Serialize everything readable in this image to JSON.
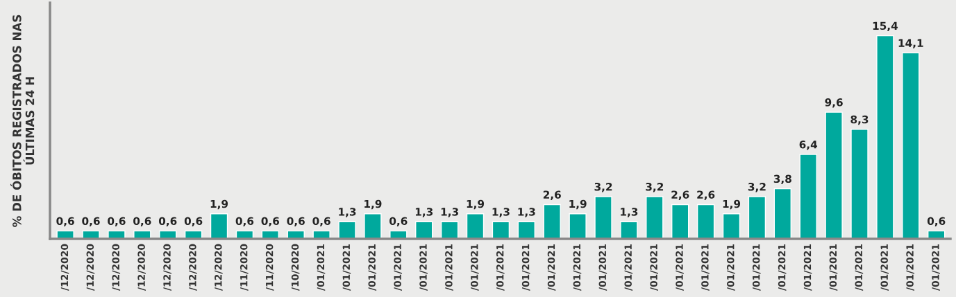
{
  "chart_data": {
    "type": "bar",
    "ylabel": "% DE ÓBITOS REGISTRADOS NAS\nÚLTIMAS 24 H",
    "categories": [
      "/12/2020",
      "/12/2020",
      "/12/2020",
      "/12/2020",
      "/12/2020",
      "/12/2020",
      "/12/2020",
      "/11/2020",
      "/11/2020",
      "/10/2020",
      "/01/2021",
      "/01/2021",
      "/01/2021",
      "/01/2021",
      "/01/2021",
      "/01/2021",
      "/01/2021",
      "/01/2021",
      "/01/2021",
      "/01/2021",
      "/01/2021",
      "/01/2021",
      "/01/2021",
      "/01/2021",
      "/01/2021",
      "/01/2021",
      "/01/2021",
      "/01/2021",
      "/01/2021",
      "/01/2021",
      "/01/2021",
      "/01/2021",
      "/01/2021",
      "/01/2021",
      "/01/2021"
    ],
    "values": [
      0.6,
      0.6,
      0.6,
      0.6,
      0.6,
      0.6,
      1.9,
      0.6,
      0.6,
      0.6,
      0.6,
      1.3,
      1.9,
      0.6,
      1.3,
      1.3,
      1.9,
      1.3,
      1.3,
      2.6,
      1.9,
      3.2,
      1.3,
      3.2,
      2.6,
      2.6,
      1.9,
      3.2,
      3.8,
      6.4,
      9.6,
      8.3,
      15.4,
      14.1,
      0.6
    ],
    "value_labels": [
      "0,6",
      "0,6",
      "0,6",
      "0,6",
      "0,6",
      "0,6",
      "1,9",
      "0,6",
      "0,6",
      "0,6",
      "0,6",
      "1,3",
      "1,9",
      "0,6",
      "1,3",
      "1,3",
      "1,9",
      "1,3",
      "1,3",
      "2,6",
      "1,9",
      "3,2",
      "1,3",
      "3,2",
      "2,6",
      "2,6",
      "1,9",
      "3,2",
      "3,8",
      "6,4",
      "9,6",
      "8,3",
      "15,4",
      "14,1",
      "0,6"
    ],
    "color": "#00a99d",
    "ylim": [
      0,
      17.9
    ],
    "grid": false,
    "legend": false
  }
}
